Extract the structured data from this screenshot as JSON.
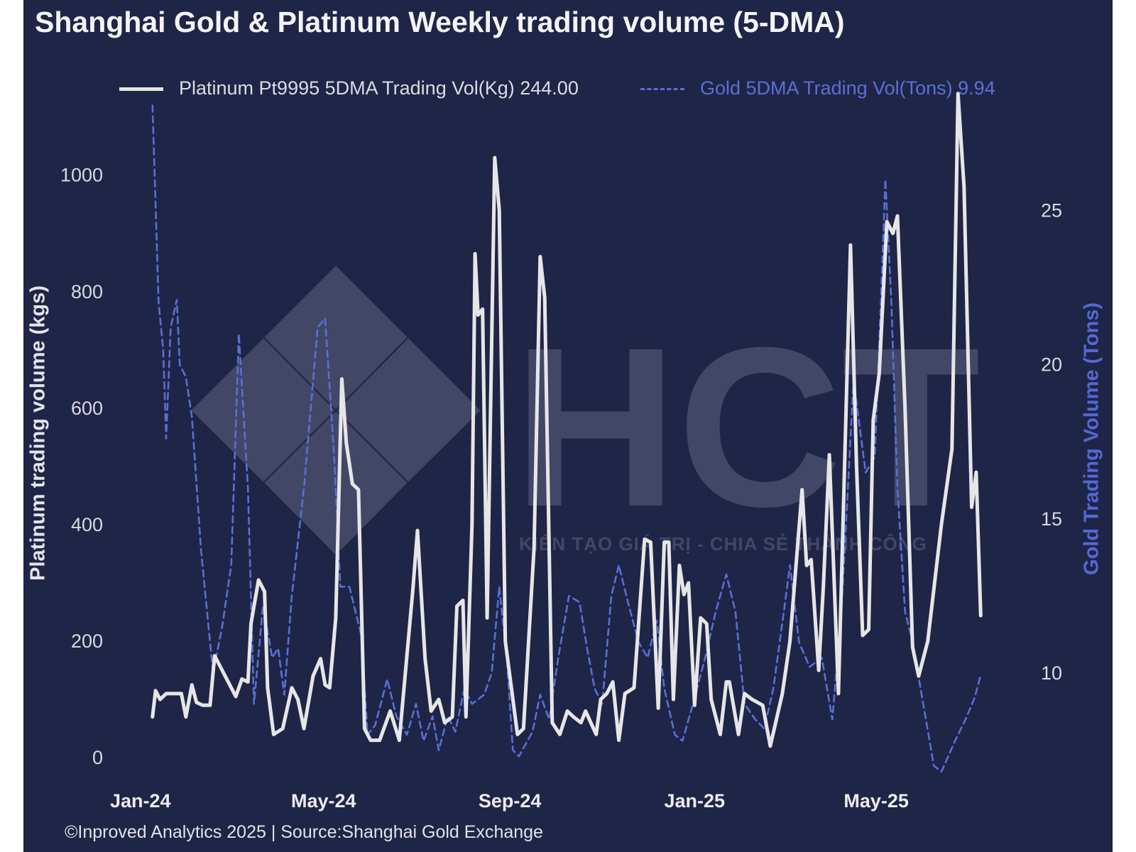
{
  "chart_data": {
    "type": "line",
    "title": "Shanghai Gold & Platinum Weekly trading volume (5-DMA)",
    "ylabel_left": "Platinum trading volume (kgs)",
    "ylabel_right": "Gold Trading Volume (Tons)",
    "source": "©Inproved Analytics 2025 | Source:Shanghai Gold Exchange",
    "legend_position": "top",
    "grid": false,
    "x_ticks": [
      "Jan-24",
      "May-24",
      "Sep-24",
      "Jan-25",
      "May-25"
    ],
    "x_tick_dates": [
      "2024-01-01",
      "2024-05-01",
      "2024-09-01",
      "2025-01-01",
      "2025-05-01"
    ],
    "x_range": [
      "2023-12-11",
      "2025-08-21"
    ],
    "y_left_ticks": [
      0,
      200,
      400,
      600,
      800,
      1000
    ],
    "y_left_range": [
      -40,
      1130
    ],
    "y_right_ticks": [
      10,
      15,
      20,
      25
    ],
    "y_right_range": [
      6.5,
      28.6
    ],
    "series": [
      {
        "name": "Platinum Pt9995 5DMA Trading Vol(Kg) 244.00",
        "axis": "left",
        "color": "#e6e6e6",
        "style": "solid",
        "points": [
          [
            "2024-01-09",
            70
          ],
          [
            "2024-01-11",
            115
          ],
          [
            "2024-01-14",
            100
          ],
          [
            "2024-01-18",
            110
          ],
          [
            "2024-01-23",
            110
          ],
          [
            "2024-01-28",
            110
          ],
          [
            "2024-01-31",
            70
          ],
          [
            "2024-02-04",
            125
          ],
          [
            "2024-02-07",
            95
          ],
          [
            "2024-02-11",
            90
          ],
          [
            "2024-02-16",
            90
          ],
          [
            "2024-02-19",
            175
          ],
          [
            "2024-02-27",
            135
          ],
          [
            "2024-03-04",
            105
          ],
          [
            "2024-03-08",
            135
          ],
          [
            "2024-03-12",
            130
          ],
          [
            "2024-03-14",
            230
          ],
          [
            "2024-03-19",
            305
          ],
          [
            "2024-03-23",
            285
          ],
          [
            "2024-03-25",
            120
          ],
          [
            "2024-03-29",
            40
          ],
          [
            "2024-04-04",
            50
          ],
          [
            "2024-04-10",
            120
          ],
          [
            "2024-04-14",
            100
          ],
          [
            "2024-04-18",
            50
          ],
          [
            "2024-04-24",
            140
          ],
          [
            "2024-04-29",
            170
          ],
          [
            "2024-05-02",
            125
          ],
          [
            "2024-05-05",
            120
          ],
          [
            "2024-05-09",
            240
          ],
          [
            "2024-05-13",
            650
          ],
          [
            "2024-05-16",
            540
          ],
          [
            "2024-05-20",
            470
          ],
          [
            "2024-05-24",
            460
          ],
          [
            "2024-05-28",
            50
          ],
          [
            "2024-06-01",
            30
          ],
          [
            "2024-06-07",
            30
          ],
          [
            "2024-06-14",
            80
          ],
          [
            "2024-06-20",
            30
          ],
          [
            "2024-06-29",
            290
          ],
          [
            "2024-07-02",
            390
          ],
          [
            "2024-07-07",
            170
          ],
          [
            "2024-07-11",
            80
          ],
          [
            "2024-07-16",
            100
          ],
          [
            "2024-07-20",
            60
          ],
          [
            "2024-07-25",
            70
          ],
          [
            "2024-07-28",
            260
          ],
          [
            "2024-08-01",
            270
          ],
          [
            "2024-08-03",
            70
          ],
          [
            "2024-08-07",
            400
          ],
          [
            "2024-08-09",
            865
          ],
          [
            "2024-08-11",
            760
          ],
          [
            "2024-08-14",
            770
          ],
          [
            "2024-08-17",
            240
          ],
          [
            "2024-08-22",
            1030
          ],
          [
            "2024-08-25",
            940
          ],
          [
            "2024-08-29",
            200
          ],
          [
            "2024-09-03",
            100
          ],
          [
            "2024-09-06",
            40
          ],
          [
            "2024-09-10",
            50
          ],
          [
            "2024-09-17",
            360
          ],
          [
            "2024-09-21",
            860
          ],
          [
            "2024-09-24",
            790
          ],
          [
            "2024-09-29",
            60
          ],
          [
            "2024-10-04",
            40
          ],
          [
            "2024-10-09",
            80
          ],
          [
            "2024-10-13",
            70
          ],
          [
            "2024-10-18",
            60
          ],
          [
            "2024-10-21",
            80
          ],
          [
            "2024-10-28",
            40
          ],
          [
            "2024-10-31",
            100
          ],
          [
            "2024-11-04",
            110
          ],
          [
            "2024-11-08",
            130
          ],
          [
            "2024-11-12",
            30
          ],
          [
            "2024-11-16",
            110
          ],
          [
            "2024-11-22",
            120
          ],
          [
            "2024-11-29",
            375
          ],
          [
            "2024-12-03",
            370
          ],
          [
            "2024-12-08",
            85
          ],
          [
            "2024-12-12",
            370
          ],
          [
            "2024-12-15",
            370
          ],
          [
            "2024-12-18",
            100
          ],
          [
            "2024-12-22",
            330
          ],
          [
            "2024-12-25",
            280
          ],
          [
            "2024-12-28",
            300
          ],
          [
            "2025-01-01",
            90
          ],
          [
            "2025-01-05",
            240
          ],
          [
            "2025-01-09",
            230
          ],
          [
            "2025-01-12",
            100
          ],
          [
            "2025-01-18",
            40
          ],
          [
            "2025-01-22",
            130
          ],
          [
            "2025-01-24",
            130
          ],
          [
            "2025-01-30",
            40
          ],
          [
            "2025-02-03",
            110
          ],
          [
            "2025-02-08",
            100
          ],
          [
            "2025-02-15",
            90
          ],
          [
            "2025-02-20",
            20
          ],
          [
            "2025-02-28",
            110
          ],
          [
            "2025-03-05",
            200
          ],
          [
            "2025-03-13",
            460
          ],
          [
            "2025-03-16",
            330
          ],
          [
            "2025-03-19",
            340
          ],
          [
            "2025-03-24",
            150
          ],
          [
            "2025-03-27",
            290
          ],
          [
            "2025-03-31",
            520
          ],
          [
            "2025-04-06",
            110
          ],
          [
            "2025-04-14",
            880
          ],
          [
            "2025-04-18",
            500
          ],
          [
            "2025-04-22",
            210
          ],
          [
            "2025-04-26",
            220
          ],
          [
            "2025-04-29",
            580
          ],
          [
            "2025-05-03",
            660
          ],
          [
            "2025-05-08",
            920
          ],
          [
            "2025-05-12",
            900
          ],
          [
            "2025-05-15",
            930
          ],
          [
            "2025-05-20",
            600
          ],
          [
            "2025-05-25",
            190
          ],
          [
            "2025-05-29",
            140
          ],
          [
            "2025-06-04",
            200
          ],
          [
            "2025-06-13",
            400
          ],
          [
            "2025-06-20",
            530
          ],
          [
            "2025-06-24",
            1140
          ],
          [
            "2025-06-28",
            980
          ],
          [
            "2025-07-03",
            430
          ],
          [
            "2025-07-06",
            490
          ],
          [
            "2025-07-09",
            244
          ]
        ]
      },
      {
        "name": "Gold 5DMA Trading Vol(Tons) 9.94",
        "axis": "right",
        "color": "#5b6ed6",
        "style": "dashed",
        "points": [
          [
            "2024-01-09",
            28.4
          ],
          [
            "2024-01-13",
            22.0
          ],
          [
            "2024-01-16",
            20.5
          ],
          [
            "2024-01-18",
            17.6
          ],
          [
            "2024-01-21",
            21.2
          ],
          [
            "2024-01-25",
            22.1
          ],
          [
            "2024-01-27",
            20.0
          ],
          [
            "2024-01-31",
            19.6
          ],
          [
            "2024-02-04",
            18.3
          ],
          [
            "2024-02-10",
            14.0
          ],
          [
            "2024-02-18",
            10.0
          ],
          [
            "2024-02-24",
            11.5
          ],
          [
            "2024-03-01",
            13.5
          ],
          [
            "2024-03-06",
            21.0
          ],
          [
            "2024-03-12",
            16.0
          ],
          [
            "2024-03-16",
            9.0
          ],
          [
            "2024-03-22",
            12.2
          ],
          [
            "2024-03-28",
            10.5
          ],
          [
            "2024-04-01",
            10.8
          ],
          [
            "2024-04-05",
            9.3
          ],
          [
            "2024-04-10",
            12.5
          ],
          [
            "2024-04-18",
            16.0
          ],
          [
            "2024-04-27",
            21.2
          ],
          [
            "2024-05-02",
            21.5
          ],
          [
            "2024-05-08",
            17.0
          ],
          [
            "2024-05-12",
            12.8
          ],
          [
            "2024-05-18",
            12.8
          ],
          [
            "2024-05-26",
            11.2
          ],
          [
            "2024-05-30",
            8.0
          ],
          [
            "2024-06-04",
            8.3
          ],
          [
            "2024-06-12",
            9.8
          ],
          [
            "2024-06-18",
            8.6
          ],
          [
            "2024-06-25",
            8.0
          ],
          [
            "2024-07-01",
            9.0
          ],
          [
            "2024-07-06",
            7.8
          ],
          [
            "2024-07-12",
            8.6
          ],
          [
            "2024-07-16",
            7.5
          ],
          [
            "2024-07-22",
            8.6
          ],
          [
            "2024-07-27",
            8.1
          ],
          [
            "2024-08-02",
            9.5
          ],
          [
            "2024-08-07",
            9.0
          ],
          [
            "2024-08-15",
            9.3
          ],
          [
            "2024-08-20",
            10.0
          ],
          [
            "2024-08-25",
            12.8
          ],
          [
            "2024-08-30",
            10.5
          ],
          [
            "2024-09-03",
            7.5
          ],
          [
            "2024-09-07",
            7.3
          ],
          [
            "2024-09-16",
            8.1
          ],
          [
            "2024-09-21",
            9.3
          ],
          [
            "2024-09-27",
            8.5
          ],
          [
            "2024-10-03",
            10.5
          ],
          [
            "2024-10-10",
            12.5
          ],
          [
            "2024-10-17",
            12.3
          ],
          [
            "2024-10-22",
            10.8
          ],
          [
            "2024-10-27",
            9.5
          ],
          [
            "2024-11-01",
            9.0
          ],
          [
            "2024-11-07",
            12.5
          ],
          [
            "2024-11-12",
            13.5
          ],
          [
            "2024-11-18",
            12.3
          ],
          [
            "2024-11-25",
            11.0
          ],
          [
            "2024-12-01",
            10.5
          ],
          [
            "2024-12-07",
            11.7
          ],
          [
            "2024-12-12",
            9.5
          ],
          [
            "2024-12-19",
            8.0
          ],
          [
            "2024-12-24",
            7.8
          ],
          [
            "2024-12-31",
            9.0
          ],
          [
            "2025-01-08",
            10.5
          ],
          [
            "2025-01-15",
            12.0
          ],
          [
            "2025-01-22",
            13.2
          ],
          [
            "2025-01-28",
            12.0
          ],
          [
            "2025-02-03",
            9.0
          ],
          [
            "2025-02-10",
            8.5
          ],
          [
            "2025-02-16",
            8.2
          ],
          [
            "2025-02-22",
            9.5
          ],
          [
            "2025-03-01",
            12.0
          ],
          [
            "2025-03-05",
            13.5
          ],
          [
            "2025-03-11",
            11.0
          ],
          [
            "2025-03-18",
            10.2
          ],
          [
            "2025-03-26",
            10.5
          ],
          [
            "2025-04-02",
            8.5
          ],
          [
            "2025-04-08",
            12.0
          ],
          [
            "2025-04-16",
            19.5
          ],
          [
            "2025-04-24",
            16.5
          ],
          [
            "2025-04-30",
            17.0
          ],
          [
            "2025-05-04",
            22.0
          ],
          [
            "2025-05-07",
            26.0
          ],
          [
            "2025-05-11",
            22.0
          ],
          [
            "2025-05-15",
            16.0
          ],
          [
            "2025-05-20",
            12.0
          ],
          [
            "2025-05-25",
            11.0
          ],
          [
            "2025-06-01",
            9.0
          ],
          [
            "2025-06-08",
            7.0
          ],
          [
            "2025-06-13",
            6.8
          ],
          [
            "2025-06-22",
            7.8
          ],
          [
            "2025-06-29",
            8.5
          ],
          [
            "2025-07-05",
            9.2
          ],
          [
            "2025-07-09",
            9.94
          ]
        ]
      }
    ]
  },
  "watermark": {
    "letters": "HCT",
    "tagline": "KIẾN TẠO GIÁ TRỊ - CHIA SẺ THÀNH CÔNG"
  }
}
